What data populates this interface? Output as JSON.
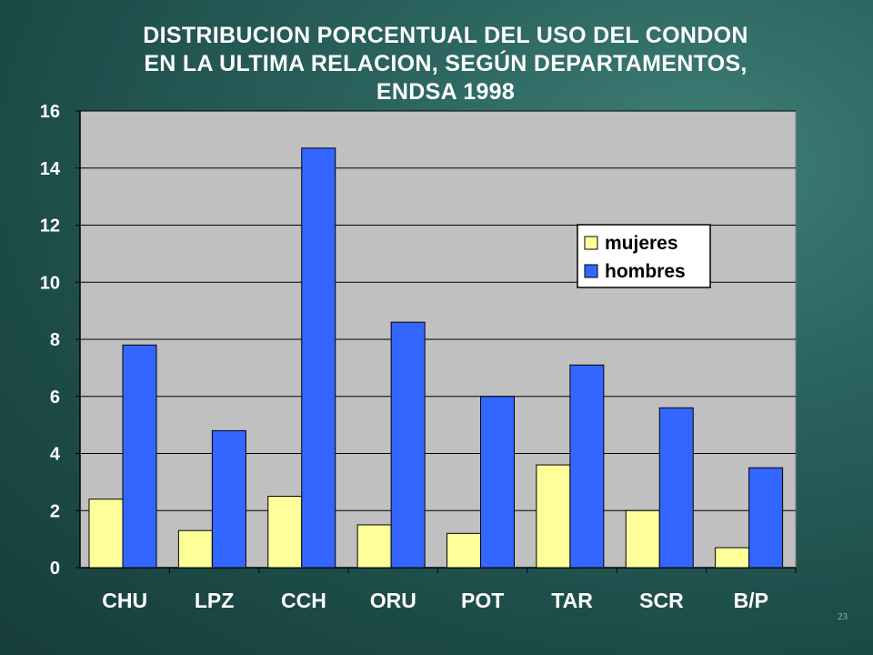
{
  "title_lines": [
    "DISTRIBUCION PORCENTUAL  DEL USO DEL CONDON",
    "EN LA ULTIMA RELACION, SEGÚN DEPARTAMENTOS,",
    "ENDSA 1998"
  ],
  "slide_number": "23",
  "colors": {
    "mujeres": "#ffff99",
    "hombres": "#3366ff",
    "plot_bg": "#c0c0c0",
    "axis_text": "#ffffff"
  },
  "chart_data": {
    "type": "bar",
    "title": "DISTRIBUCION PORCENTUAL  DEL USO DEL CONDON EN LA ULTIMA RELACION, SEGÚN DEPARTAMENTOS, ENDSA 1998",
    "categories": [
      "CHU",
      "LPZ",
      "CCH",
      "ORU",
      "POT",
      "TAR",
      "SCR",
      "B/P"
    ],
    "series": [
      {
        "name": "mujeres",
        "values": [
          2.4,
          1.3,
          2.5,
          1.5,
          1.2,
          3.6,
          2.0,
          0.7
        ]
      },
      {
        "name": "hombres",
        "values": [
          7.8,
          4.8,
          14.7,
          8.6,
          6.0,
          7.1,
          5.6,
          3.5
        ]
      }
    ],
    "ylim": [
      0,
      16
    ],
    "yticks": [
      "0",
      "2",
      "4",
      "6",
      "8",
      "10",
      "12",
      "14",
      "16"
    ],
    "grid": true,
    "legend_position": "top-right"
  }
}
